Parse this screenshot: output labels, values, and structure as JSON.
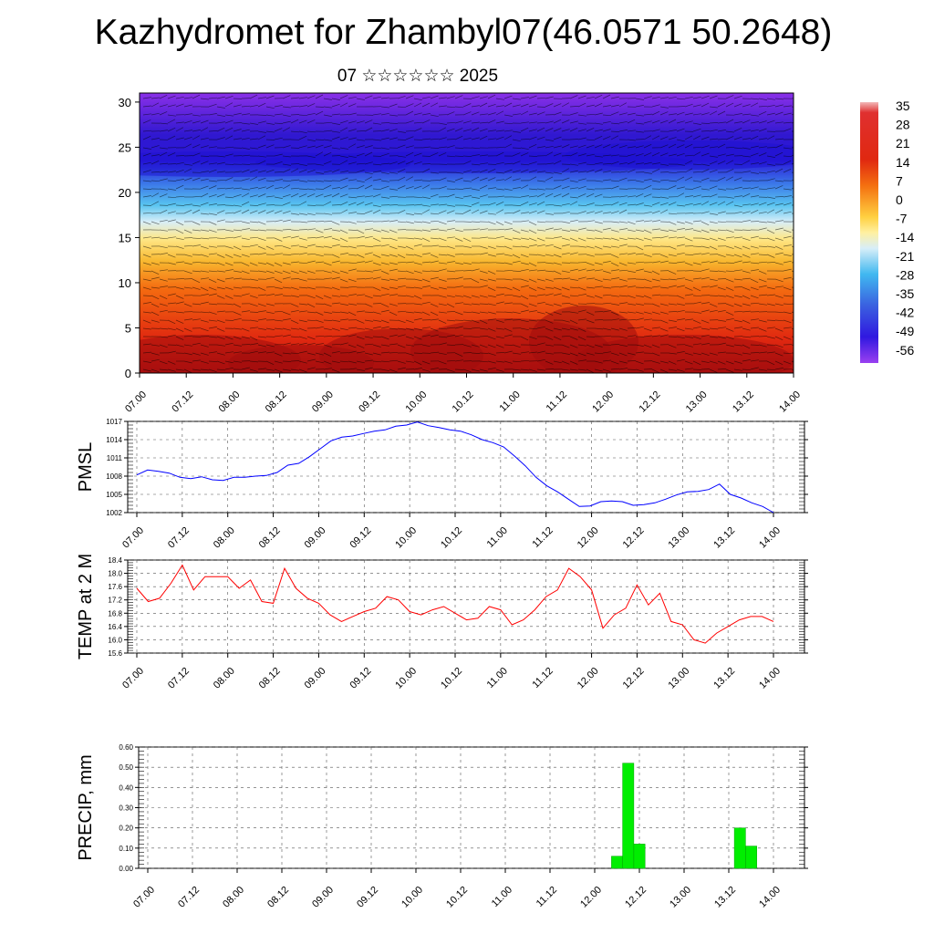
{
  "title": "Kazhydromet for Zhambyl07(46.0571 50.2648)",
  "subtitle": "07 ☆☆☆☆☆☆ 2025",
  "time_ticks": [
    "07.00",
    "07.12",
    "08.00",
    "08.12",
    "09.00",
    "09.12",
    "10.00",
    "10.12",
    "11.00",
    "11.12",
    "12.00",
    "12.12",
    "13.00",
    "13.12",
    "14.00"
  ],
  "chart_data": [
    {
      "type": "heatmap",
      "y_ticks": [
        "0",
        "5",
        "10",
        "15",
        "20",
        "25",
        "30"
      ],
      "ylim": [
        0,
        31
      ],
      "colorbar_labels": [
        "35",
        "28",
        "21",
        "14",
        "7",
        "0",
        "-7",
        "-14",
        "-21",
        "-28",
        "-35",
        "-42",
        "-49",
        "-56"
      ],
      "colors": {
        "warm": "#d81e10",
        "mid": "#ffe070",
        "cool": "#4ec0f0",
        "cold": "#3020e0",
        "top": "#8a30e8"
      }
    },
    {
      "type": "line",
      "ylabel": "PMSL",
      "y_ticks": [
        "1017",
        "1014",
        "1011",
        "1008",
        "1005",
        "1002"
      ],
      "ylim": [
        1002,
        1017
      ],
      "color": "#0000ff",
      "values": [
        1008.2,
        1009.0,
        1008.8,
        1008.5,
        1007.8,
        1007.6,
        1007.9,
        1007.4,
        1007.3,
        1007.8,
        1007.8,
        1008.0,
        1008.1,
        1008.6,
        1009.8,
        1010.1,
        1011.2,
        1012.5,
        1013.8,
        1014.4,
        1014.6,
        1015.0,
        1015.4,
        1015.6,
        1016.2,
        1016.4,
        1016.9,
        1016.3,
        1016.0,
        1015.6,
        1015.4,
        1014.8,
        1014.0,
        1013.5,
        1012.8,
        1011.3,
        1009.7,
        1007.8,
        1006.4,
        1005.4,
        1004.2,
        1003.0,
        1003.1,
        1003.8,
        1003.9,
        1003.8,
        1003.2,
        1003.3,
        1003.6,
        1004.2,
        1004.9,
        1005.4,
        1005.5,
        1005.8,
        1006.7,
        1005.0,
        1004.4,
        1003.6,
        1003.0,
        1002.0
      ]
    },
    {
      "type": "line",
      "ylabel": "TEMP at 2 M",
      "y_ticks": [
        "18.4",
        "18.0",
        "17.6",
        "17.2",
        "16.8",
        "16.4",
        "16.0",
        "15.6"
      ],
      "ylim": [
        15.6,
        18.4
      ],
      "color": "#ff0000",
      "values": [
        17.55,
        17.15,
        17.25,
        17.7,
        18.25,
        17.5,
        17.9,
        17.9,
        17.9,
        17.55,
        17.8,
        17.15,
        17.1,
        18.15,
        17.55,
        17.25,
        17.1,
        16.75,
        16.55,
        16.7,
        16.85,
        16.95,
        17.3,
        17.2,
        16.85,
        16.75,
        16.9,
        17.0,
        16.8,
        16.6,
        16.65,
        17.0,
        16.9,
        16.45,
        16.6,
        16.9,
        17.3,
        17.5,
        18.15,
        17.9,
        17.5,
        16.35,
        16.75,
        16.95,
        17.65,
        17.05,
        17.4,
        16.55,
        16.45,
        16.0,
        15.9,
        16.2,
        16.4,
        16.6,
        16.7,
        16.7,
        16.55
      ]
    },
    {
      "type": "bar",
      "ylabel": "PRECIP, mm",
      "y_ticks": [
        "0.60",
        "0.50",
        "0.40",
        "0.30",
        "0.20",
        "0.10",
        "0.00"
      ],
      "ylim": [
        0,
        0.6
      ],
      "color": "#00ee00",
      "bars": [
        {
          "x": 12.25,
          "value": 0.06
        },
        {
          "x": 12.375,
          "value": 0.52
        },
        {
          "x": 12.5,
          "value": 0.12
        },
        {
          "x": 13.625,
          "value": 0.2
        },
        {
          "x": 13.75,
          "value": 0.11
        }
      ]
    }
  ]
}
